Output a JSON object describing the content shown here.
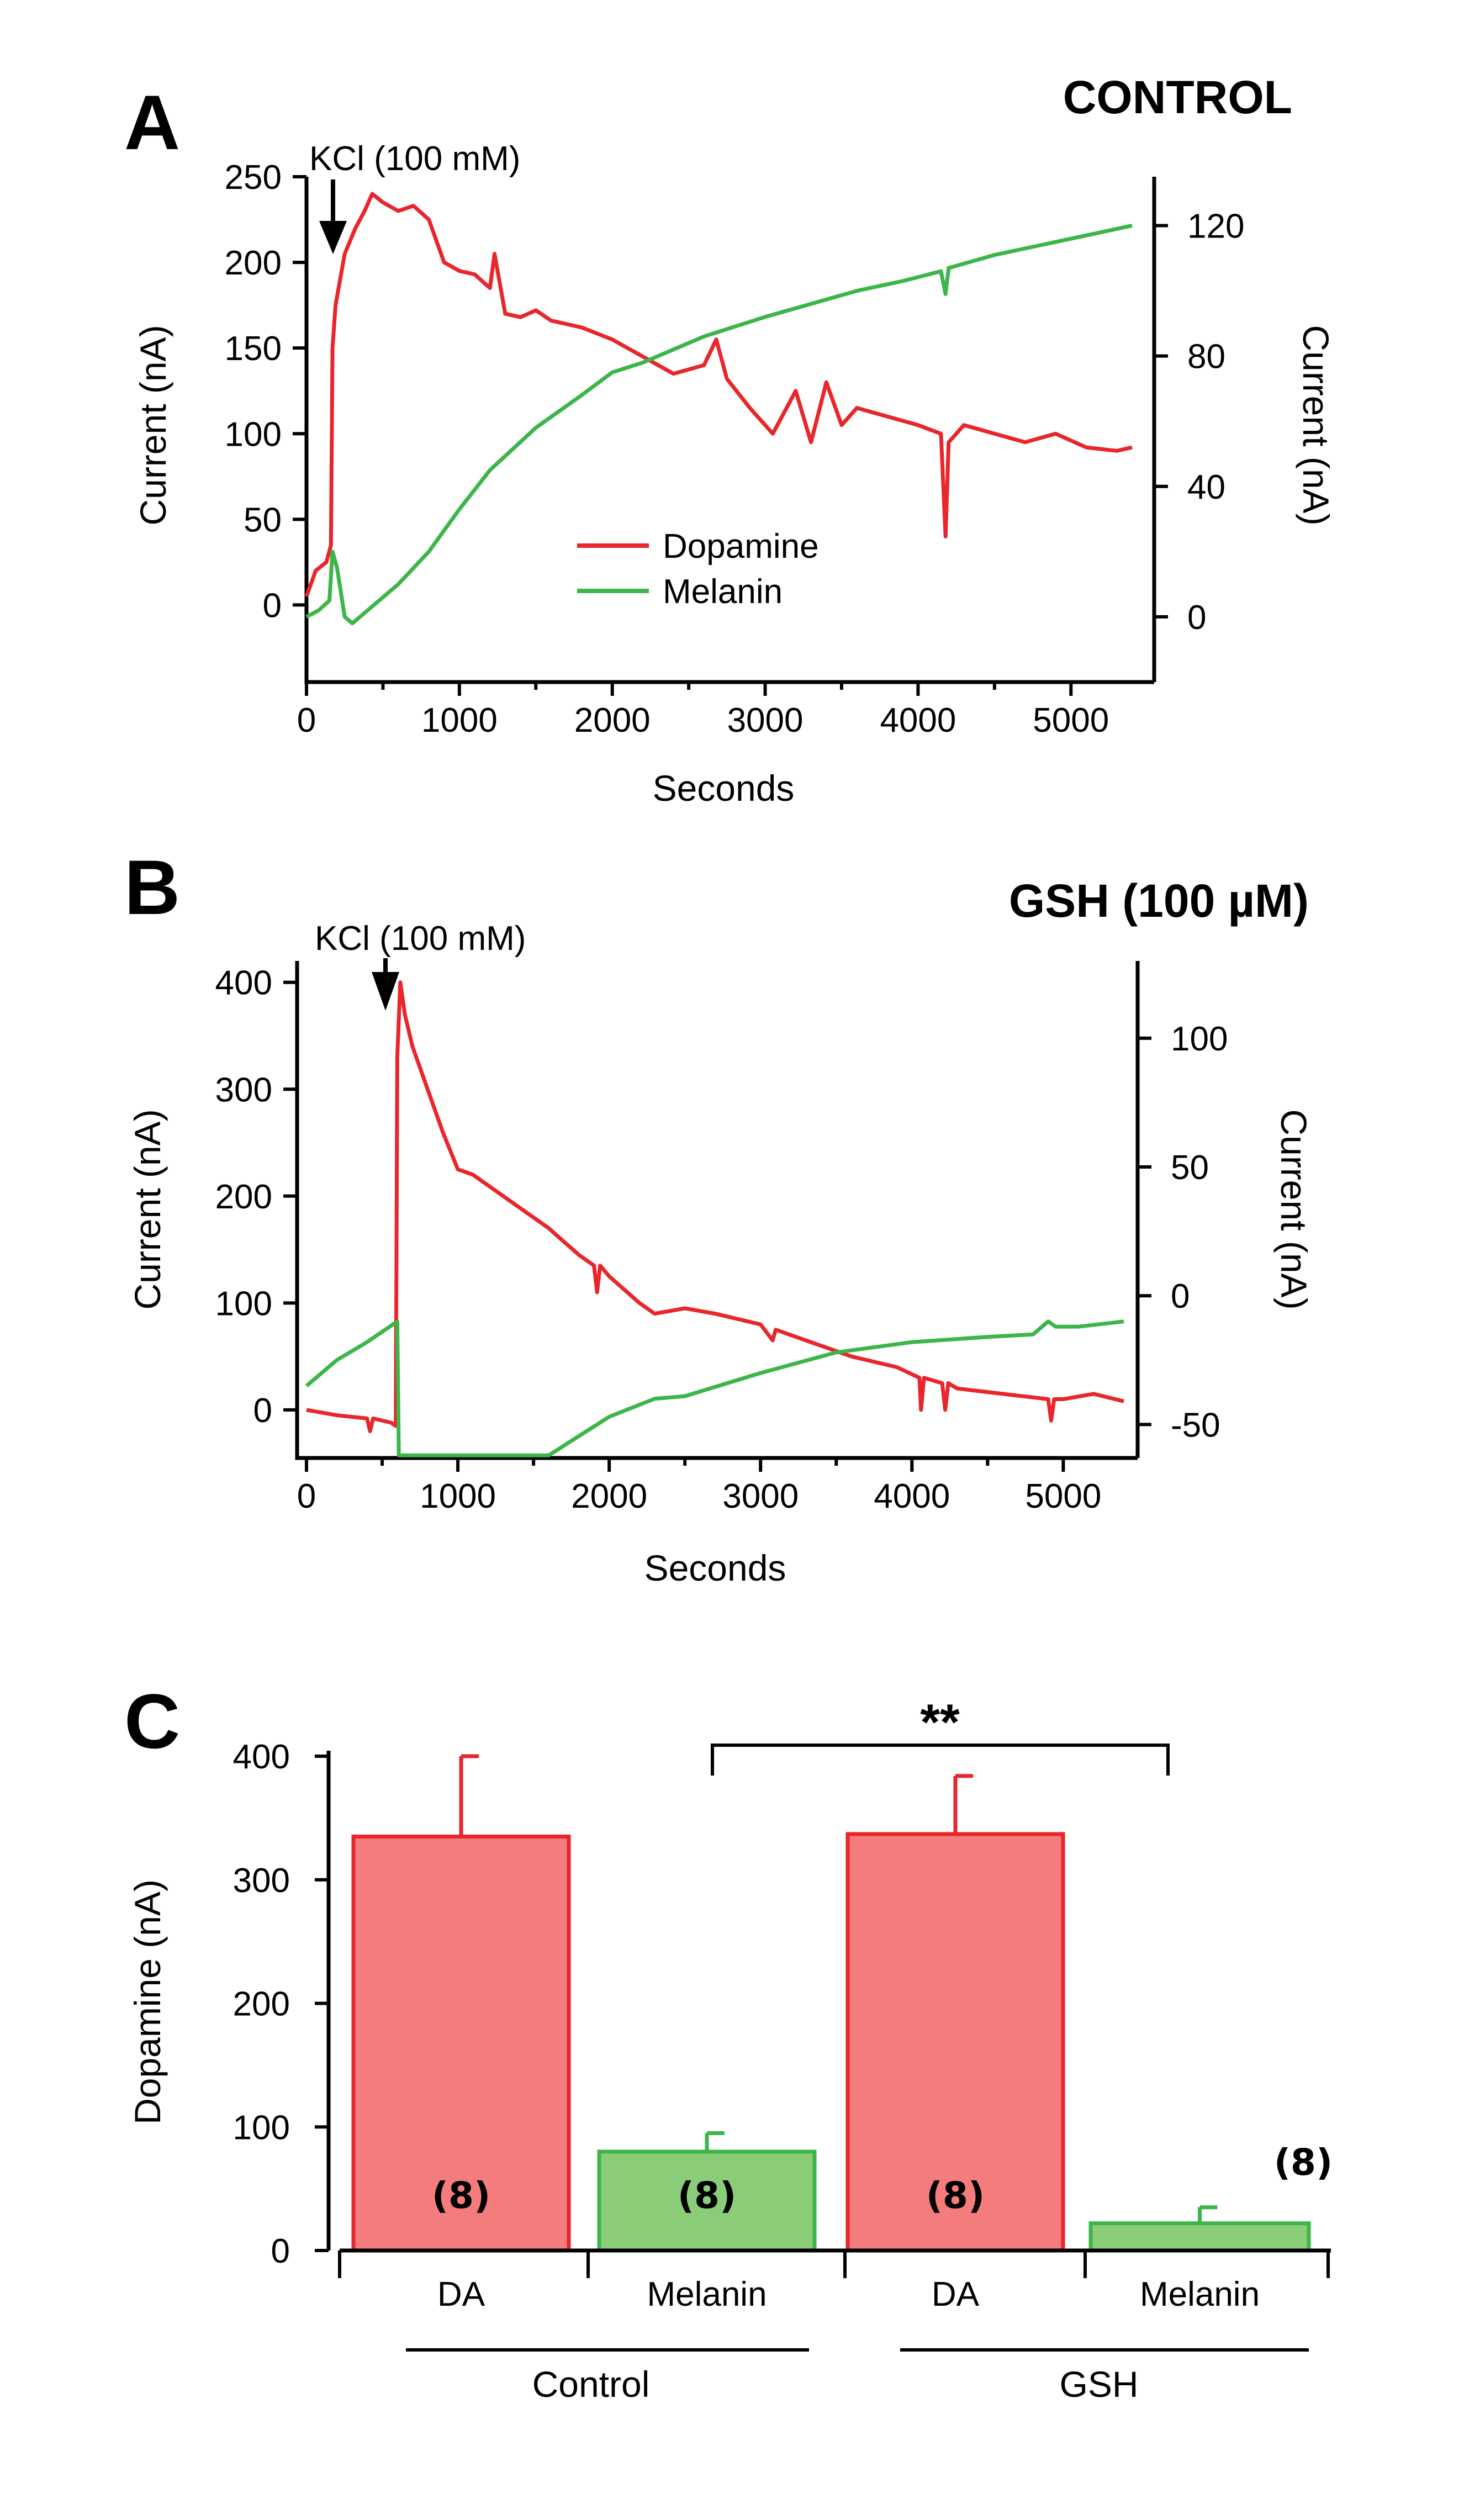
{
  "colors": {
    "dopamine": "#e8262b",
    "melanin": "#3cb54a",
    "bar_red_fill": "#f47c7c",
    "bar_green_fill": "#8bcc78"
  },
  "chart_data": [
    {
      "panel": "A",
      "title": "CONTROL",
      "type": "line",
      "xlabel": "Seconds",
      "ylabel_left": "Current (nA)",
      "ylabel_right": "Current (nA)",
      "xlim": [
        0,
        5400
      ],
      "xticks": [
        0,
        1000,
        2000,
        3000,
        4000,
        5000
      ],
      "ylim_left": [
        -45,
        250
      ],
      "yticks_left": [
        0,
        50,
        100,
        150,
        200,
        250
      ],
      "ylim_right": [
        -20,
        135
      ],
      "yticks_right": [
        0,
        40,
        80,
        120
      ],
      "annotation": {
        "text": "KCl (100 mM)",
        "x": 150
      },
      "legend": {
        "position": "center",
        "entries": [
          "Dopamine",
          "Melanin"
        ]
      },
      "series": [
        {
          "name": "Dopamine",
          "axis": "left",
          "color": "#e8262b",
          "x": [
            0,
            60,
            130,
            160,
            170,
            190,
            250,
            320,
            380,
            430,
            500,
            600,
            700,
            800,
            900,
            1000,
            1100,
            1200,
            1230,
            1300,
            1400,
            1500,
            1600,
            1800,
            2000,
            2200,
            2400,
            2600,
            2680,
            2750,
            2900,
            3050,
            3200,
            3300,
            3400,
            3500,
            3600,
            3800,
            4000,
            4150,
            4180,
            4200,
            4300,
            4500,
            4700,
            4900,
            5100,
            5300,
            5400
          ],
          "y": [
            5,
            20,
            25,
            35,
            150,
            175,
            205,
            220,
            230,
            240,
            235,
            230,
            233,
            225,
            200,
            195,
            193,
            185,
            205,
            170,
            168,
            172,
            166,
            162,
            155,
            145,
            135,
            140,
            155,
            132,
            115,
            100,
            125,
            95,
            130,
            105,
            115,
            110,
            105,
            100,
            40,
            95,
            105,
            100,
            95,
            100,
            92,
            90,
            92
          ]
        },
        {
          "name": "Melanin",
          "axis": "right",
          "color": "#3cb54a",
          "x": [
            0,
            80,
            150,
            170,
            200,
            250,
            300,
            400,
            600,
            800,
            1000,
            1200,
            1500,
            1800,
            2000,
            2200,
            2400,
            2600,
            2800,
            3000,
            3300,
            3600,
            3900,
            4150,
            4180,
            4200,
            4500,
            4800,
            5100,
            5400
          ],
          "y": [
            0,
            2,
            5,
            20,
            15,
            0,
            -2,
            2,
            10,
            20,
            33,
            45,
            58,
            68,
            75,
            78,
            82,
            86,
            89,
            92,
            96,
            100,
            103,
            106,
            99,
            107,
            111,
            114,
            117,
            120
          ]
        }
      ]
    },
    {
      "panel": "B",
      "title": "GSH (100 µM)",
      "type": "line",
      "xlabel": "Seconds",
      "ylabel_left": "Current (nA)",
      "ylabel_right": "Current (nA)",
      "xlim": [
        0,
        5400
      ],
      "xticks": [
        0,
        1000,
        2000,
        3000,
        4000,
        5000
      ],
      "ylim_left": [
        -45,
        420
      ],
      "yticks_left": [
        0,
        100,
        200,
        300,
        400
      ],
      "ylim_right": [
        -63,
        130
      ],
      "yticks_right": [
        -50,
        0,
        50,
        100
      ],
      "annotation": {
        "text": "KCl (100 mM)",
        "x": 510
      },
      "series": [
        {
          "name": "Dopamine",
          "axis": "left",
          "color": "#e8262b",
          "x": [
            0,
            200,
            400,
            420,
            440,
            560,
            590,
            600,
            620,
            650,
            700,
            800,
            900,
            1000,
            1100,
            1200,
            1400,
            1600,
            1800,
            1900,
            1920,
            1940,
            2000,
            2200,
            2300,
            2500,
            2700,
            3000,
            3080,
            3100,
            3300,
            3600,
            3900,
            4050,
            4060,
            4080,
            4200,
            4220,
            4240,
            4300,
            4600,
            4900,
            4920,
            4940,
            5000,
            5200,
            5400
          ],
          "y": [
            0,
            -5,
            -8,
            -20,
            -8,
            -12,
            -15,
            330,
            400,
            370,
            340,
            300,
            260,
            225,
            220,
            210,
            190,
            170,
            145,
            135,
            110,
            135,
            125,
            100,
            90,
            95,
            90,
            80,
            65,
            75,
            65,
            50,
            40,
            30,
            0,
            30,
            25,
            0,
            25,
            20,
            15,
            10,
            -10,
            10,
            10,
            15,
            8
          ]
        },
        {
          "name": "Melanin",
          "axis": "right",
          "color": "#3cb54a",
          "x": [
            0,
            200,
            400,
            600,
            610,
            620,
            1600,
            2000,
            2300,
            2500,
            3000,
            3500,
            4000,
            4500,
            4800,
            4900,
            4950,
            5100,
            5400
          ],
          "y": [
            -35,
            -25,
            -18,
            -10,
            -62,
            -62,
            -62,
            -47,
            -40,
            -39,
            -30,
            -22,
            -18,
            -16,
            -15,
            -10,
            -12,
            -12,
            -10
          ]
        }
      ]
    },
    {
      "panel": "C",
      "type": "bar",
      "ylabel": "Dopamine (nA)",
      "ylim": [
        0,
        400
      ],
      "yticks": [
        0,
        100,
        200,
        300,
        400
      ],
      "categories": [
        "DA",
        "Melanin",
        "DA",
        "Melanin"
      ],
      "groups": [
        "Control",
        "GSH"
      ],
      "values": [
        335,
        80,
        337,
        22
      ],
      "errors": [
        65,
        15,
        47,
        13
      ],
      "n_labels": [
        "(8)",
        "(8)",
        "(8)",
        "(8)"
      ],
      "bar_colors": [
        "red",
        "green",
        "red",
        "green"
      ],
      "significance": {
        "label": "**",
        "between": [
          1,
          3
        ]
      }
    }
  ]
}
